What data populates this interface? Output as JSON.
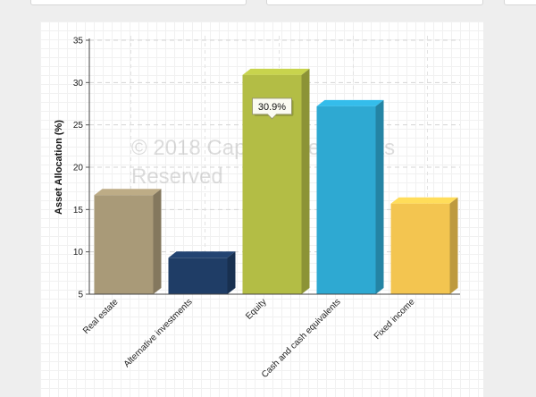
{
  "chart_data": {
    "type": "bar",
    "title": "",
    "xlabel": "",
    "ylabel": "Asset Allocation (%)",
    "ylim": [
      5,
      35
    ],
    "yticks": [
      "5",
      "10",
      "15",
      "20",
      "25",
      "30",
      "35"
    ],
    "categories": [
      "Real estate",
      "Alternative investments",
      "Equity",
      "Cash and cash equivalents",
      "Fixed income"
    ],
    "values": [
      16.7,
      9.3,
      30.9,
      27.2,
      15.7
    ],
    "colors": [
      "#a99a78",
      "#1f3d66",
      "#b3bd45",
      "#2ea9d2",
      "#f3c550"
    ],
    "tooltip": {
      "category": "Equity",
      "label": "30.9%"
    },
    "grid": true
  },
  "watermark": "© 2018 Capital Investments Reserved"
}
